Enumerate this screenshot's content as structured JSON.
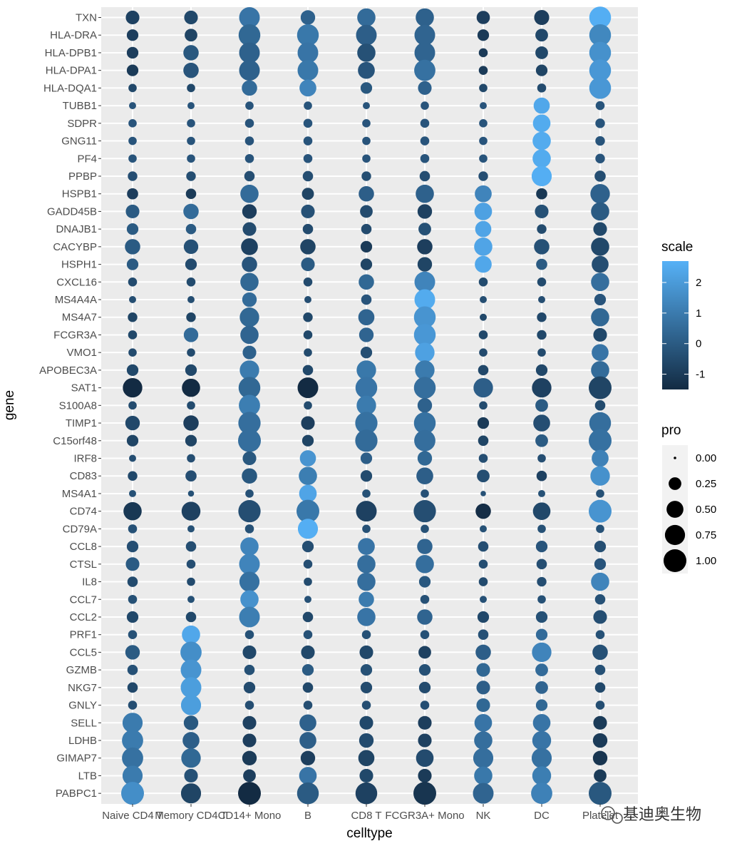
{
  "chart_data": {
    "type": "dotplot",
    "xlabel": "celltype",
    "ylabel": "gene",
    "categories": [
      "Naive CD4 T",
      "Memory CD4 T",
      "CD14+ Mono",
      "B",
      "CD8 T",
      "FCGR3A+ Mono",
      "NK",
      "DC",
      "Platelet"
    ],
    "genes": [
      "TXN",
      "HLA-DRA",
      "HLA-DPB1",
      "HLA-DPA1",
      "HLA-DQA1",
      "TUBB1",
      "SDPR",
      "GNG11",
      "PF4",
      "PPBP",
      "HSPB1",
      "GADD45B",
      "DNAJB1",
      "CACYBP",
      "HSPH1",
      "CXCL16",
      "MS4A4A",
      "MS4A7",
      "FCGR3A",
      "VMO1",
      "APOBEC3A",
      "SAT1",
      "S100A8",
      "TIMP1",
      "C15orf48",
      "IRF8",
      "CD83",
      "MS4A1",
      "CD74",
      "CD79A",
      "CCL8",
      "CTSL",
      "IL8",
      "CCL7",
      "CCL2",
      "PRF1",
      "CCL5",
      "GZMB",
      "NKG7",
      "GNLY",
      "SELL",
      "LDHB",
      "GIMAP7",
      "LTB",
      "PABPC1"
    ],
    "scale": [
      [
        -0.8,
        -0.6,
        0.8,
        0.2,
        0.5,
        0.2,
        -0.9,
        -0.9,
        2.6
      ],
      [
        -0.9,
        -0.7,
        0.4,
        0.9,
        0.1,
        0.3,
        -1.0,
        -0.6,
        1.4
      ],
      [
        -0.9,
        -0.1,
        0.2,
        0.8,
        -0.3,
        0.3,
        -1.0,
        -0.6,
        1.7
      ],
      [
        -1.0,
        -0.2,
        0.2,
        0.9,
        -0.2,
        0.7,
        -1.0,
        -0.7,
        1.9
      ],
      [
        -0.6,
        -0.6,
        0.5,
        1.3,
        -0.1,
        0.2,
        -0.6,
        -0.5,
        1.9
      ],
      [
        -0.2,
        -0.2,
        -0.2,
        -0.2,
        -0.2,
        -0.2,
        -0.2,
        2.4,
        -0.2
      ],
      [
        -0.2,
        -0.2,
        -0.2,
        -0.2,
        -0.2,
        -0.2,
        -0.2,
        2.5,
        -0.2
      ],
      [
        -0.2,
        -0.2,
        -0.2,
        -0.2,
        -0.2,
        -0.2,
        -0.2,
        2.5,
        -0.2
      ],
      [
        -0.2,
        -0.2,
        -0.2,
        -0.2,
        -0.2,
        -0.2,
        -0.2,
        2.5,
        -0.2
      ],
      [
        -0.4,
        -0.4,
        -0.4,
        -0.4,
        -0.4,
        -0.4,
        -0.4,
        2.6,
        -0.4
      ],
      [
        -0.9,
        -1.0,
        0.5,
        -0.7,
        0.1,
        0.2,
        1.3,
        -1.1,
        0.2
      ],
      [
        0.0,
        0.5,
        -0.9,
        -0.3,
        -0.5,
        -0.8,
        2.2,
        -0.3,
        0.0
      ],
      [
        0.0,
        0.0,
        -0.5,
        -0.5,
        -0.5,
        -0.3,
        2.3,
        -0.5,
        -0.6
      ],
      [
        0.0,
        -0.3,
        -0.8,
        -0.7,
        -1.0,
        -0.9,
        2.3,
        -0.3,
        -0.6
      ],
      [
        0.0,
        -0.5,
        -0.2,
        0.0,
        -0.7,
        -0.7,
        2.4,
        0.0,
        -0.4
      ],
      [
        -0.5,
        -0.5,
        0.4,
        -0.5,
        0.4,
        1.3,
        -0.5,
        -0.5,
        0.6
      ],
      [
        -0.4,
        -0.4,
        0.5,
        -0.4,
        -0.2,
        2.5,
        -0.4,
        -0.4,
        -0.2
      ],
      [
        -0.7,
        -0.7,
        0.4,
        -0.6,
        0.3,
        1.8,
        -0.6,
        -0.6,
        0.4
      ],
      [
        -0.6,
        0.5,
        0.3,
        -0.6,
        0.3,
        1.9,
        -0.6,
        -0.6,
        -0.6
      ],
      [
        -0.5,
        -0.5,
        0.2,
        -0.5,
        -0.4,
        2.2,
        -0.5,
        -0.5,
        0.8
      ],
      [
        -0.6,
        -0.6,
        1.0,
        -0.6,
        0.9,
        1.0,
        -0.6,
        -0.6,
        0.5
      ],
      [
        -1.5,
        -1.5,
        0.4,
        -1.5,
        0.8,
        0.6,
        0.1,
        -0.8,
        -0.7
      ],
      [
        -0.5,
        -0.5,
        1.1,
        -0.5,
        1.0,
        0.2,
        -0.5,
        0.0,
        -0.5
      ],
      [
        -0.6,
        -0.9,
        0.6,
        -0.9,
        0.7,
        0.7,
        -1.0,
        -0.4,
        0.6
      ],
      [
        -0.7,
        -0.7,
        0.6,
        -0.7,
        0.5,
        0.6,
        -0.7,
        0.0,
        0.7
      ],
      [
        -0.4,
        -0.4,
        -0.1,
        1.8,
        0.1,
        0.4,
        -0.4,
        -0.4,
        1.2
      ],
      [
        -0.6,
        -0.4,
        -0.1,
        1.1,
        -0.5,
        0.1,
        -0.4,
        -0.8,
        1.7
      ],
      [
        -0.3,
        -0.3,
        -0.3,
        2.3,
        -0.3,
        -0.3,
        -0.3,
        -0.3,
        -0.3
      ],
      [
        -1.1,
        -0.8,
        -0.4,
        0.9,
        -0.8,
        -0.4,
        -1.4,
        -0.6,
        1.8
      ],
      [
        -0.3,
        -0.3,
        -0.3,
        2.6,
        -0.3,
        -0.3,
        -0.3,
        -0.3,
        -0.3
      ],
      [
        -0.4,
        -0.4,
        1.3,
        -0.4,
        0.8,
        0.3,
        -0.4,
        -0.2,
        -0.4
      ],
      [
        0.0,
        -0.4,
        1.3,
        -0.4,
        0.6,
        0.6,
        -0.4,
        -0.4,
        -0.2
      ],
      [
        -0.5,
        -0.5,
        0.7,
        -0.5,
        0.6,
        -0.1,
        -0.5,
        -0.4,
        1.3
      ],
      [
        -0.3,
        -0.3,
        1.7,
        -0.3,
        1.0,
        -0.3,
        -0.3,
        -0.3,
        -0.3
      ],
      [
        -0.6,
        -0.6,
        1.1,
        -0.6,
        0.8,
        0.3,
        -0.6,
        -0.3,
        -0.4
      ],
      [
        -0.3,
        2.4,
        -0.3,
        -0.3,
        -0.3,
        -0.3,
        -0.3,
        0.5,
        -0.3
      ],
      [
        0.0,
        1.6,
        -0.6,
        -0.6,
        -0.6,
        -0.8,
        0.1,
        1.3,
        -0.3
      ],
      [
        -0.3,
        1.8,
        -0.3,
        0.0,
        -0.3,
        -0.3,
        0.4,
        0.5,
        -0.3
      ],
      [
        -0.6,
        2.1,
        -0.5,
        -0.6,
        -0.5,
        -0.5,
        0.1,
        0.3,
        -0.6
      ],
      [
        -0.4,
        2.1,
        -0.4,
        -0.4,
        -0.4,
        -0.4,
        0.4,
        0.4,
        -0.4
      ],
      [
        1.0,
        -0.1,
        -0.8,
        0.2,
        -0.6,
        -0.9,
        0.8,
        0.8,
        -1.0
      ],
      [
        1.0,
        0.1,
        -0.9,
        0.1,
        -0.5,
        -0.8,
        0.6,
        0.8,
        -1.0
      ],
      [
        0.7,
        0.4,
        -1.0,
        -0.9,
        -0.7,
        -0.5,
        0.6,
        0.7,
        -1.2
      ],
      [
        1.0,
        -0.3,
        -0.9,
        0.8,
        -0.6,
        -1.0,
        0.9,
        1.1,
        -1.0
      ],
      [
        1.6,
        -0.7,
        -1.6,
        0.0,
        -0.8,
        -1.2,
        0.3,
        1.2,
        -0.1
      ]
    ],
    "pro": [
      [
        0.3,
        0.3,
        0.8,
        0.35,
        0.6,
        0.6,
        0.28,
        0.38,
        0.9
      ],
      [
        0.2,
        0.25,
        0.9,
        0.9,
        0.8,
        0.8,
        0.2,
        0.25,
        0.9
      ],
      [
        0.2,
        0.4,
        0.8,
        0.8,
        0.6,
        0.8,
        0.1,
        0.25,
        0.9
      ],
      [
        0.2,
        0.4,
        0.8,
        0.8,
        0.5,
        0.85,
        0.1,
        0.2,
        0.9
      ],
      [
        0.08,
        0.08,
        0.4,
        0.5,
        0.2,
        0.3,
        0.08,
        0.1,
        0.9
      ],
      [
        0.05,
        0.05,
        0.08,
        0.08,
        0.05,
        0.08,
        0.05,
        0.45,
        0.1
      ],
      [
        0.08,
        0.08,
        0.1,
        0.1,
        0.08,
        0.1,
        0.08,
        0.55,
        0.12
      ],
      [
        0.08,
        0.08,
        0.1,
        0.1,
        0.08,
        0.1,
        0.08,
        0.6,
        0.12
      ],
      [
        0.08,
        0.08,
        0.1,
        0.1,
        0.08,
        0.1,
        0.08,
        0.6,
        0.12
      ],
      [
        0.12,
        0.12,
        0.15,
        0.15,
        0.12,
        0.15,
        0.12,
        0.75,
        0.18
      ],
      [
        0.18,
        0.15,
        0.6,
        0.22,
        0.4,
        0.6,
        0.5,
        0.18,
        0.7
      ],
      [
        0.3,
        0.4,
        0.35,
        0.3,
        0.25,
        0.35,
        0.55,
        0.3,
        0.6
      ],
      [
        0.2,
        0.15,
        0.3,
        0.15,
        0.15,
        0.25,
        0.45,
        0.12,
        0.3
      ],
      [
        0.4,
        0.35,
        0.5,
        0.4,
        0.2,
        0.4,
        0.6,
        0.4,
        0.6
      ],
      [
        0.2,
        0.2,
        0.4,
        0.3,
        0.2,
        0.35,
        0.5,
        0.18,
        0.5
      ],
      [
        0.1,
        0.1,
        0.6,
        0.1,
        0.4,
        0.8,
        0.1,
        0.1,
        0.6
      ],
      [
        0.05,
        0.05,
        0.35,
        0.05,
        0.15,
        0.8,
        0.05,
        0.05,
        0.2
      ],
      [
        0.12,
        0.12,
        0.7,
        0.12,
        0.45,
        0.9,
        0.05,
        0.12,
        0.6
      ],
      [
        0.1,
        0.35,
        0.6,
        0.1,
        0.35,
        0.9,
        0.1,
        0.12,
        0.3
      ],
      [
        0.08,
        0.08,
        0.3,
        0.08,
        0.2,
        0.7,
        0.08,
        0.08,
        0.5
      ],
      [
        0.2,
        0.2,
        0.7,
        0.15,
        0.7,
        0.7,
        0.15,
        0.2,
        0.6
      ],
      [
        0.7,
        0.6,
        0.9,
        0.8,
        0.9,
        0.9,
        0.7,
        0.7,
        1.0
      ],
      [
        0.08,
        0.08,
        0.85,
        0.08,
        0.7,
        0.35,
        0.08,
        0.25,
        0.15
      ],
      [
        0.35,
        0.4,
        0.95,
        0.3,
        0.95,
        0.9,
        0.2,
        0.5,
        0.9
      ],
      [
        0.2,
        0.2,
        1.0,
        0.2,
        0.95,
        0.85,
        0.15,
        0.25,
        1.0
      ],
      [
        0.05,
        0.08,
        0.3,
        0.45,
        0.2,
        0.35,
        0.1,
        0.08,
        0.5
      ],
      [
        0.12,
        0.18,
        0.4,
        0.6,
        0.2,
        0.5,
        0.25,
        0.15,
        0.7
      ],
      [
        0.05,
        0.03,
        0.08,
        0.55,
        0.08,
        0.08,
        0.02,
        0.05,
        0.08
      ],
      [
        0.6,
        0.65,
        0.95,
        1.0,
        0.8,
        0.95,
        0.4,
        0.55,
        1.0
      ],
      [
        0.1,
        0.05,
        0.1,
        0.75,
        0.08,
        0.08,
        0.05,
        0.08,
        0.08
      ],
      [
        0.2,
        0.15,
        0.6,
        0.2,
        0.5,
        0.4,
        0.15,
        0.2,
        0.2
      ],
      [
        0.3,
        0.1,
        0.8,
        0.1,
        0.6,
        0.6,
        0.1,
        0.15,
        0.2
      ],
      [
        0.15,
        0.08,
        0.75,
        0.08,
        0.6,
        0.2,
        0.1,
        0.12,
        0.6
      ],
      [
        0.1,
        0.05,
        0.6,
        0.05,
        0.4,
        0.1,
        0.05,
        0.08,
        0.15
      ],
      [
        0.2,
        0.15,
        0.8,
        0.15,
        0.6,
        0.4,
        0.2,
        0.2,
        0.3
      ],
      [
        0.1,
        0.6,
        0.1,
        0.1,
        0.1,
        0.1,
        0.15,
        0.2,
        0.1
      ],
      [
        0.35,
        0.85,
        0.3,
        0.3,
        0.3,
        0.25,
        0.4,
        0.7,
        0.4
      ],
      [
        0.15,
        0.8,
        0.15,
        0.2,
        0.2,
        0.2,
        0.3,
        0.25,
        0.15
      ],
      [
        0.15,
        0.8,
        0.2,
        0.15,
        0.2,
        0.2,
        0.3,
        0.25,
        0.15
      ],
      [
        0.1,
        0.75,
        0.1,
        0.1,
        0.1,
        0.1,
        0.3,
        0.2,
        0.1
      ],
      [
        0.75,
        0.35,
        0.3,
        0.5,
        0.3,
        0.3,
        0.55,
        0.55,
        0.3
      ],
      [
        0.85,
        0.5,
        0.3,
        0.5,
        0.35,
        0.3,
        0.6,
        0.65,
        0.35
      ],
      [
        0.85,
        0.7,
        0.35,
        0.35,
        0.45,
        0.55,
        0.75,
        0.75,
        0.35
      ],
      [
        0.75,
        0.3,
        0.25,
        0.55,
        0.3,
        0.3,
        0.6,
        0.65,
        0.25
      ],
      [
        1.0,
        0.75,
        1.0,
        0.9,
        0.9,
        1.0,
        0.8,
        0.85,
        1.0
      ]
    ],
    "legend_scale": {
      "title": "scale",
      "ticks": [
        2,
        1,
        0,
        -1
      ],
      "tick_labels": [
        "2",
        "1",
        "0",
        "-1"
      ],
      "range": [
        -1.5,
        2.7
      ],
      "placement": "right-middle"
    },
    "legend_size": {
      "title": "pro",
      "values": [
        0.0,
        0.25,
        0.5,
        0.75,
        1.0
      ],
      "labels": [
        "0.00",
        "0.25",
        "0.50",
        "0.75",
        "1.00"
      ],
      "placement": "right-middle"
    },
    "colors": {
      "low": "#132B43",
      "high": "#56B1F7",
      "panel": "#EBEBEB",
      "grid": "#FFFFFF"
    }
  },
  "watermark": {
    "text": "基迪奥生物"
  }
}
